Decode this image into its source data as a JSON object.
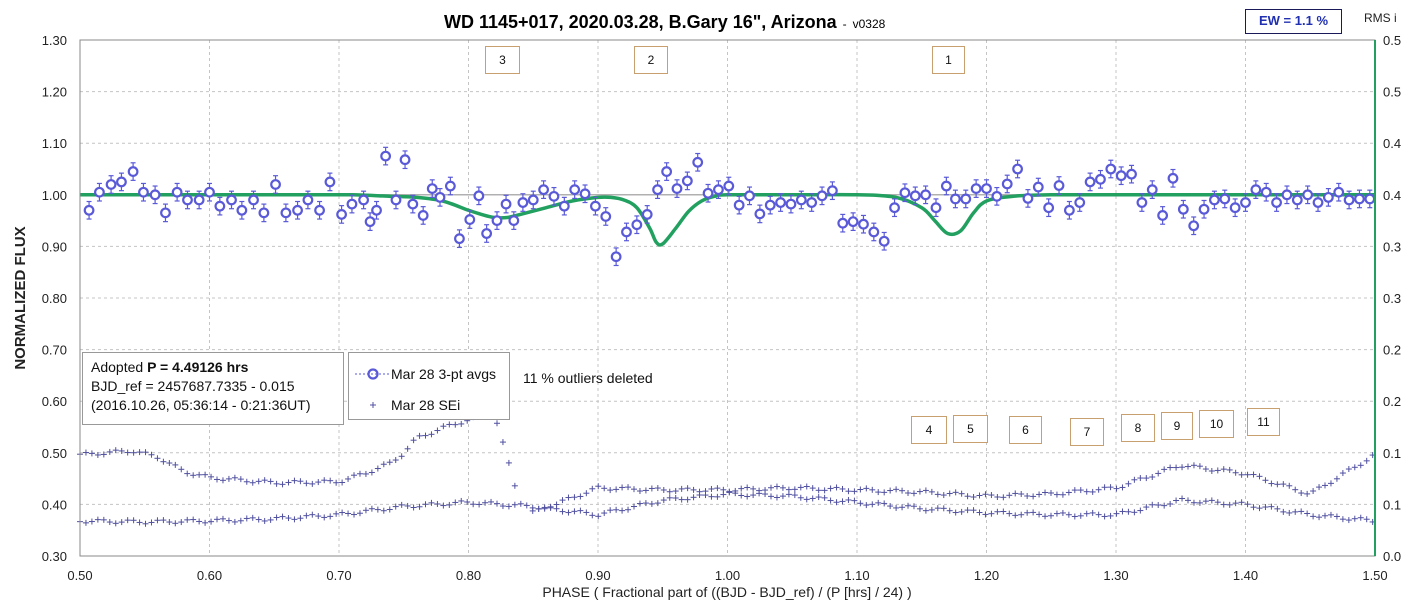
{
  "title": "WD 1145+017, 2020.03.28, B.Gary 16\", Arizona",
  "title_separator": "-",
  "version": "v0328",
  "ew_label": "EW = 1.1 %",
  "rms_label": "RMS i",
  "info": {
    "line1_prefix": "Adopted ",
    "line1_bold": "P = 4.49126 hrs",
    "line2": "BJD_ref = 2457687.7335 - 0.015",
    "line3": "(2016.10.26, 05:36:14 - 0:21:36UT)"
  },
  "legend": [
    {
      "label": "Mar 28 3-pt avgs",
      "marker": "circle",
      "color": "#5a5ad8"
    },
    {
      "label": "Mar 28 SEi",
      "marker": "plus",
      "color": "#5050a0"
    }
  ],
  "outliers_note": "11 % outliers deleted",
  "dip_labels": [
    "3",
    "2",
    "1",
    "4",
    "5",
    "6",
    "7",
    "8",
    "9",
    "10",
    "11"
  ],
  "chart_data": {
    "type": "scatter",
    "xlabel": "PHASE ( Fractional part of ((BJD - BJD_ref) / (P [hrs] / 24) )",
    "ylabel": "NORMALIZED FLUX",
    "xlim": [
      0.5,
      1.5
    ],
    "ylim": [
      0.3,
      1.3
    ],
    "y2lim": [
      0.0,
      0.5
    ],
    "xticks": [
      "0.50",
      "0.60",
      "0.70",
      "0.80",
      "0.90",
      "1.00",
      "1.10",
      "1.20",
      "1.30",
      "1.40",
      "1.50"
    ],
    "yticks": [
      "0.30",
      "0.40",
      "0.50",
      "0.60",
      "0.70",
      "0.80",
      "0.90",
      "1.00",
      "1.10",
      "1.20",
      "1.30"
    ],
    "y2ticks": [
      "0.0",
      "0.1",
      "0.1",
      "0.2",
      "0.2",
      "0.3",
      "0.3",
      "0.4",
      "0.4",
      "0.5",
      "0.5"
    ],
    "grid": true,
    "reference_line": 1.0,
    "colors": {
      "points": "#5a5ad8",
      "model": "#22a060",
      "sei": "#5050a0",
      "reference": "#b0b0b0"
    },
    "series": [
      {
        "name": "Mar 28 3-pt avgs",
        "x": [
          0.507,
          0.515,
          0.524,
          0.532,
          0.541,
          0.549,
          0.558,
          0.566,
          0.575,
          0.583,
          0.592,
          0.6,
          0.608,
          0.617,
          0.625,
          0.634,
          0.642,
          0.651,
          0.659,
          0.668,
          0.676,
          0.685,
          0.693,
          0.702,
          0.71,
          0.719,
          0.724,
          0.729,
          0.736,
          0.744,
          0.751,
          0.757,
          0.765,
          0.772,
          0.778,
          0.786,
          0.793,
          0.801,
          0.808,
          0.814,
          0.822,
          0.829,
          0.835,
          0.842,
          0.85,
          0.858,
          0.866,
          0.874,
          0.882,
          0.89,
          0.898,
          0.906,
          0.914,
          0.922,
          0.93,
          0.938,
          0.946,
          0.953,
          0.961,
          0.969,
          0.977,
          0.985,
          0.993,
          1.001,
          1.009,
          1.017,
          1.025,
          1.033,
          1.041,
          1.049,
          1.057,
          1.065,
          1.073,
          1.081,
          1.089,
          1.097,
          1.105,
          1.113,
          1.121,
          1.129,
          1.137,
          1.145,
          1.153,
          1.161,
          1.169,
          1.176,
          1.184,
          1.192,
          1.2,
          1.208,
          1.216,
          1.224,
          1.232,
          1.24,
          1.248,
          1.256,
          1.264,
          1.272,
          1.28,
          1.288,
          1.296,
          1.304,
          1.312,
          1.32,
          1.328,
          1.336,
          1.344,
          1.352,
          1.36,
          1.368,
          1.376,
          1.384,
          1.392,
          1.4,
          1.408,
          1.416,
          1.424,
          1.432,
          1.44,
          1.448,
          1.456,
          1.464,
          1.472,
          1.48,
          1.488,
          1.496
        ],
        "y": [
          0.97,
          1.005,
          1.02,
          1.025,
          1.045,
          1.005,
          1.0,
          0.965,
          1.005,
          0.99,
          0.99,
          1.005,
          0.978,
          0.99,
          0.97,
          0.99,
          0.965,
          1.02,
          0.965,
          0.97,
          0.99,
          0.97,
          1.025,
          0.962,
          0.982,
          0.99,
          0.948,
          0.97,
          1.075,
          0.99,
          1.068,
          0.982,
          0.96,
          1.012,
          0.995,
          1.017,
          0.915,
          0.952,
          0.998,
          0.925,
          0.95,
          0.982,
          0.95,
          0.985,
          0.99,
          1.01,
          0.997,
          0.978,
          1.01,
          1.002,
          0.978,
          0.958,
          0.88,
          0.928,
          0.942,
          0.962,
          1.01,
          1.045,
          1.012,
          1.027,
          1.063,
          1.003,
          1.01,
          1.017,
          0.98,
          0.998,
          0.963,
          0.98,
          0.985,
          0.982,
          0.99,
          0.985,
          0.998,
          1.008,
          0.945,
          0.948,
          0.943,
          0.928,
          0.91,
          0.975,
          1.004,
          0.998,
          1.0,
          0.975,
          1.017,
          0.992,
          0.992,
          1.012,
          1.012,
          0.997,
          1.021,
          1.05,
          0.993,
          1.015,
          0.975,
          1.018,
          0.97,
          0.985,
          1.025,
          1.03,
          1.05,
          1.037,
          1.04,
          0.985,
          1.01,
          0.96,
          1.032,
          0.972,
          0.94,
          0.972,
          0.99,
          0.992,
          0.975,
          0.985,
          1.01,
          1.005,
          0.985,
          1.0,
          0.99,
          1.0,
          0.985,
          0.995,
          1.005,
          0.99,
          0.992,
          0.992
        ],
        "err": 0.017
      },
      {
        "name": "model",
        "x": [
          0.5,
          0.53,
          0.56,
          0.59,
          0.62,
          0.65,
          0.68,
          0.71,
          0.74,
          0.76,
          0.78,
          0.8,
          0.81,
          0.82,
          0.83,
          0.84,
          0.86,
          0.88,
          0.9,
          0.91,
          0.92,
          0.93,
          0.94,
          0.945,
          0.95,
          0.96,
          0.97,
          0.98,
          0.99,
          1.0,
          1.05,
          1.1,
          1.13,
          1.15,
          1.16,
          1.17,
          1.18,
          1.19,
          1.2,
          1.22,
          1.25,
          1.3,
          1.35,
          1.4,
          1.45,
          1.5
        ],
        "y": [
          1.0,
          1.0,
          1.0,
          1.0,
          1.0,
          1.0,
          1.0,
          1.0,
          0.997,
          0.995,
          0.988,
          0.97,
          0.962,
          0.956,
          0.956,
          0.962,
          0.975,
          0.988,
          0.995,
          0.995,
          0.99,
          0.975,
          0.935,
          0.908,
          0.905,
          0.935,
          0.968,
          0.988,
          0.997,
          1.0,
          1.0,
          1.0,
          0.995,
          0.975,
          0.95,
          0.925,
          0.93,
          0.965,
          0.988,
          0.997,
          1.0,
          1.0,
          1.0,
          1.0,
          1.0,
          1.0
        ]
      },
      {
        "name": "Mar 28 SEi",
        "axis": "y2",
        "lower": {
          "x": [
            0.5,
            0.55,
            0.6,
            0.65,
            0.7,
            0.75,
            0.8,
            0.85,
            0.9,
            0.95,
            1.0,
            1.05,
            1.1,
            1.15,
            1.2,
            1.25,
            1.3,
            1.35,
            1.4,
            1.45,
            1.5
          ],
          "y": [
            0.034,
            0.033,
            0.034,
            0.036,
            0.04,
            0.048,
            0.052,
            0.048,
            0.04,
            0.054,
            0.06,
            0.058,
            0.052,
            0.046,
            0.042,
            0.04,
            0.04,
            0.054,
            0.05,
            0.04,
            0.034
          ]
        },
        "upper": {
          "x": [
            0.5,
            0.54,
            0.56,
            0.58,
            0.6,
            0.65,
            0.7,
            0.72,
            0.74,
            0.75,
            0.76,
            0.78,
            0.8,
            0.82,
            0.84,
            0.85,
            0.9,
            0.95,
            1.0,
            1.05,
            1.1,
            1.15,
            1.2,
            1.25,
            1.3,
            1.35,
            1.4,
            1.45,
            1.5
          ],
          "y": [
            0.098,
            0.102,
            0.096,
            0.082,
            0.076,
            0.071,
            0.072,
            0.08,
            0.09,
            0.1,
            0.114,
            0.124,
            0.132,
            0.138,
            0.05,
            0.042,
            0.066,
            0.064,
            0.064,
            0.066,
            0.064,
            0.062,
            0.058,
            0.06,
            0.066,
            0.088,
            0.08,
            0.06,
            0.098
          ]
        }
      }
    ]
  }
}
